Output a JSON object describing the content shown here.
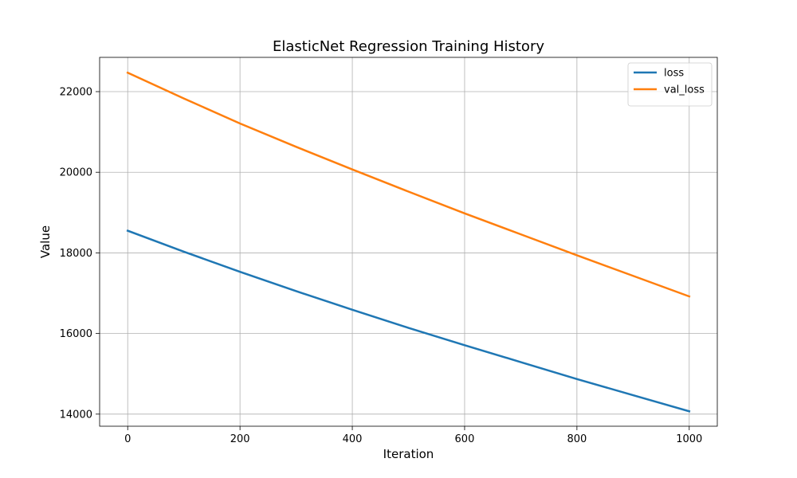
{
  "chart_data": {
    "type": "line",
    "title": "ElasticNet Regression Training History",
    "xlabel": "Iteration",
    "ylabel": "Value",
    "xlim": [
      -50,
      1050
    ],
    "ylim": [
      13700,
      22850
    ],
    "xticks": [
      0,
      200,
      400,
      600,
      800,
      1000
    ],
    "yticks": [
      14000,
      16000,
      18000,
      20000,
      22000
    ],
    "grid": true,
    "legend_position": "top-right",
    "x": [
      0,
      100,
      200,
      300,
      400,
      500,
      600,
      700,
      800,
      900,
      1000
    ],
    "series": [
      {
        "name": "loss",
        "color": "#1f77b4",
        "values": [
          18550,
          18030,
          17530,
          17050,
          16590,
          16140,
          15710,
          15290,
          14870,
          14470,
          14070
        ]
      },
      {
        "name": "val_loss",
        "color": "#ff7f0e",
        "values": [
          22470,
          21830,
          21210,
          20630,
          20070,
          19520,
          18980,
          18460,
          17940,
          17430,
          16920
        ]
      }
    ]
  }
}
